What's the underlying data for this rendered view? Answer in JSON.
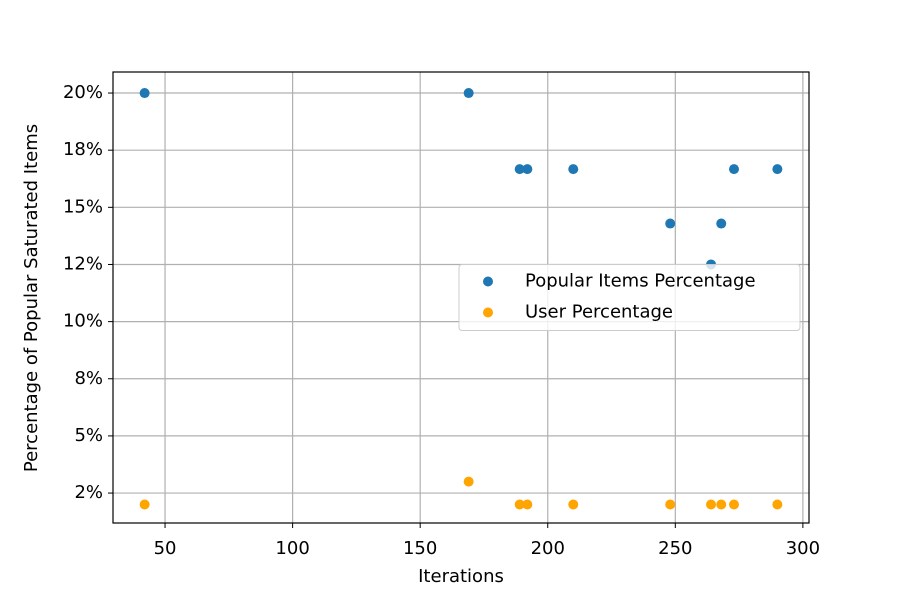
{
  "chart_data": {
    "type": "scatter",
    "x_label": "Iterations",
    "y_label": "Percentage of Popular Saturated Items",
    "x": [
      42,
      169,
      189,
      192,
      210,
      248,
      264,
      268,
      273,
      290
    ],
    "series": [
      {
        "name": "Popular Items Percentage",
        "color": "#1f77b4",
        "values": [
          20,
          20,
          16.67,
          16.67,
          16.67,
          14.29,
          12.5,
          14.29,
          16.67,
          16.67
        ]
      },
      {
        "name": "User Percentage",
        "color": "#ffa500",
        "values": [
          2,
          3,
          2,
          2,
          2,
          2,
          2,
          2,
          2,
          2
        ]
      }
    ],
    "xlim": [
      29.6,
      302.4
    ],
    "ylim": [
      1.19,
      20.92
    ],
    "xticks": [
      50,
      100,
      150,
      200,
      250,
      300
    ],
    "yticks": [
      {
        "value": 2.5,
        "label": "2%"
      },
      {
        "value": 5,
        "label": "5%"
      },
      {
        "value": 7.5,
        "label": "8%"
      },
      {
        "value": 10,
        "label": "10%"
      },
      {
        "value": 12.5,
        "label": "12%"
      },
      {
        "value": 15,
        "label": "15%"
      },
      {
        "value": 17.5,
        "label": "18%"
      },
      {
        "value": 20,
        "label": "20%"
      }
    ],
    "grid": true,
    "legend": "center right"
  }
}
